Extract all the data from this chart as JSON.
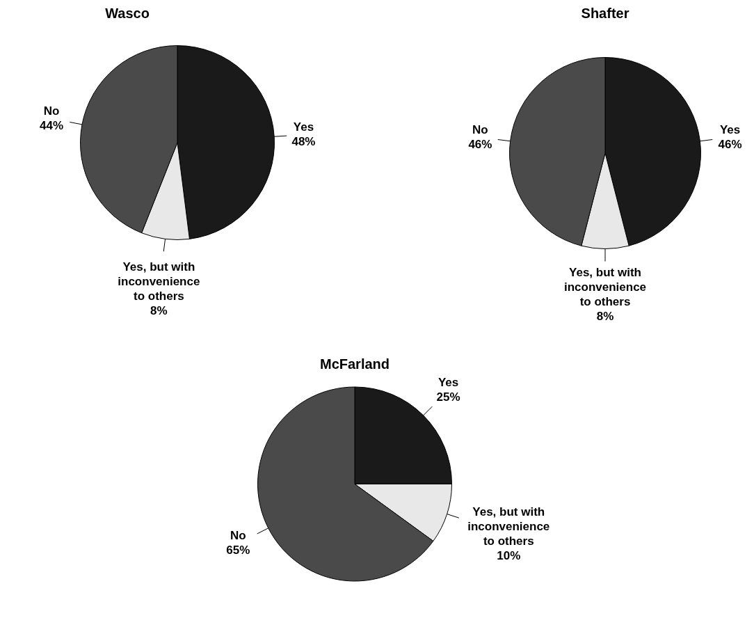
{
  "chart_data": [
    {
      "type": "pie",
      "title": "Wasco",
      "categories": [
        "Yes",
        "Yes, but with inconvenience to others",
        "No"
      ],
      "values": [
        48,
        8,
        44
      ],
      "value_labels": [
        "48%",
        "8%",
        "44%"
      ],
      "colors": [
        "#1a1a1a",
        "#e8e8e8",
        "#4a4a4a"
      ]
    },
    {
      "type": "pie",
      "title": "Shafter",
      "categories": [
        "Yes",
        "Yes, but with inconvenience to others",
        "No"
      ],
      "values": [
        46,
        8,
        46
      ],
      "value_labels": [
        "46%",
        "8%",
        "46%"
      ],
      "colors": [
        "#1a1a1a",
        "#e8e8e8",
        "#4a4a4a"
      ]
    },
    {
      "type": "pie",
      "title": "McFarland",
      "categories": [
        "Yes",
        "Yes, but with inconvenience to others",
        "No"
      ],
      "values": [
        25,
        10,
        65
      ],
      "value_labels": [
        "25%",
        "10%",
        "65%"
      ],
      "colors": [
        "#1a1a1a",
        "#e8e8e8",
        "#4a4a4a"
      ]
    }
  ]
}
